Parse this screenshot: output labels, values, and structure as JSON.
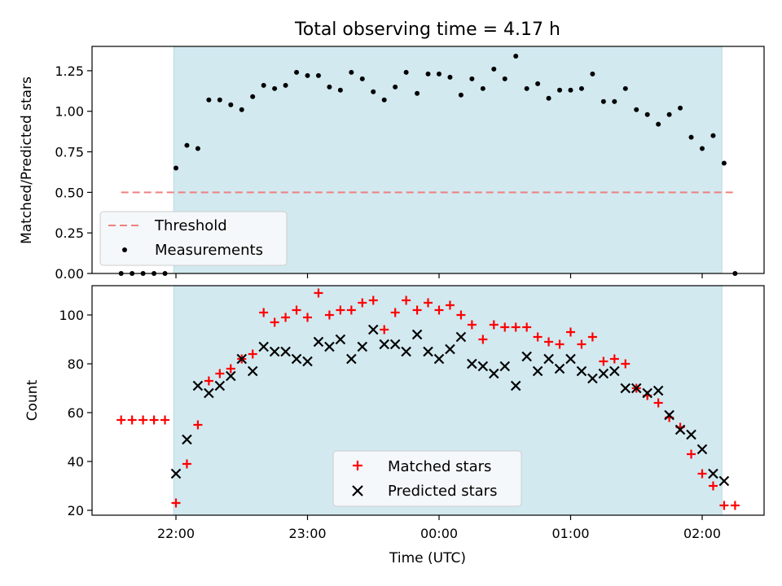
{
  "chart_data": [
    {
      "type": "scatter",
      "title": "Total observing time = 4.17 h",
      "ylabel": "Matched/Predicted stars",
      "xlabel": "",
      "ylim": [
        0,
        1.4
      ],
      "yticks": [
        "0.00",
        "0.25",
        "0.50",
        "0.75",
        "1.00",
        "1.25"
      ],
      "observing_window": {
        "start": "21:59",
        "end": "02:09"
      },
      "threshold": {
        "value": 0.5,
        "x_start": "21:35",
        "x_end": "02:15"
      },
      "legend": [
        "Threshold",
        "Measurements"
      ],
      "legend_position": "lower-left",
      "colors": {
        "band": "#d2e9f0",
        "threshold": "#f08080",
        "points": "#000000"
      },
      "series": [
        {
          "name": "Measurements",
          "x": [
            "21:35",
            "21:40",
            "21:45",
            "21:50",
            "21:55",
            "22:00",
            "22:05",
            "22:10",
            "22:15",
            "22:20",
            "22:25",
            "22:30",
            "22:35",
            "22:40",
            "22:45",
            "22:50",
            "22:55",
            "23:00",
            "23:05",
            "23:10",
            "23:15",
            "23:20",
            "23:25",
            "23:30",
            "23:35",
            "23:40",
            "23:45",
            "23:50",
            "23:55",
            "00:00",
            "00:05",
            "00:10",
            "00:15",
            "00:20",
            "00:25",
            "00:30",
            "00:35",
            "00:40",
            "00:45",
            "00:50",
            "00:55",
            "01:00",
            "01:05",
            "01:10",
            "01:15",
            "01:20",
            "01:25",
            "01:30",
            "01:35",
            "01:40",
            "01:45",
            "01:50",
            "01:55",
            "02:00",
            "02:05",
            "02:10",
            "02:15"
          ],
          "y": [
            0,
            0,
            0,
            0,
            0,
            0.65,
            0.79,
            0.77,
            1.07,
            1.07,
            1.04,
            1.01,
            1.09,
            1.16,
            1.14,
            1.16,
            1.24,
            1.22,
            1.22,
            1.15,
            1.13,
            1.24,
            1.2,
            1.12,
            1.07,
            1.15,
            1.24,
            1.11,
            1.23,
            1.23,
            1.21,
            1.1,
            1.2,
            1.14,
            1.26,
            1.2,
            1.34,
            1.14,
            1.17,
            1.08,
            1.13,
            1.13,
            1.14,
            1.23,
            1.06,
            1.06,
            1.14,
            1.01,
            0.98,
            0.92,
            0.98,
            1.02,
            0.84,
            0.77,
            0.85,
            0.68,
            0
          ]
        }
      ]
    },
    {
      "type": "scatter",
      "xlabel": "Time (UTC)",
      "ylabel": "Count",
      "ylim": [
        18,
        112
      ],
      "yticks": [
        "20",
        "40",
        "60",
        "80",
        "100"
      ],
      "xticks": [
        "22:00",
        "23:00",
        "00:00",
        "01:00",
        "02:00"
      ],
      "observing_window": {
        "start": "21:59",
        "end": "02:09"
      },
      "legend": [
        "Matched stars",
        "Predicted stars"
      ],
      "legend_position": "lower-center",
      "colors": {
        "band": "#d2e9f0",
        "matched": "#ff0000",
        "predicted": "#000000"
      },
      "series": [
        {
          "name": "Matched stars",
          "x": [
            "21:35",
            "21:40",
            "21:45",
            "21:50",
            "21:55",
            "22:00",
            "22:05",
            "22:10",
            "22:15",
            "22:20",
            "22:25",
            "22:30",
            "22:35",
            "22:40",
            "22:45",
            "22:50",
            "22:55",
            "23:00",
            "23:05",
            "23:10",
            "23:15",
            "23:20",
            "23:25",
            "23:30",
            "23:35",
            "23:40",
            "23:45",
            "23:50",
            "23:55",
            "00:00",
            "00:05",
            "00:10",
            "00:15",
            "00:20",
            "00:25",
            "00:30",
            "00:35",
            "00:40",
            "00:45",
            "00:50",
            "00:55",
            "01:00",
            "01:05",
            "01:10",
            "01:15",
            "01:20",
            "01:25",
            "01:30",
            "01:35",
            "01:40",
            "01:45",
            "01:50",
            "01:55",
            "02:00",
            "02:05",
            "02:10",
            "02:15"
          ],
          "y": [
            57,
            57,
            57,
            57,
            57,
            23,
            39,
            55,
            73,
            76,
            78,
            82,
            84,
            101,
            97,
            99,
            102,
            99,
            109,
            100,
            102,
            102,
            105,
            106,
            94,
            101,
            106,
            102,
            105,
            102,
            104,
            100,
            96,
            90,
            96,
            95,
            95,
            95,
            91,
            89,
            88,
            93,
            88,
            91,
            81,
            82,
            80,
            70,
            67,
            64,
            58,
            54,
            43,
            35,
            30,
            22,
            22
          ]
        },
        {
          "name": "Predicted stars",
          "x": [
            "22:00",
            "22:05",
            "22:10",
            "22:15",
            "22:20",
            "22:25",
            "22:30",
            "22:35",
            "22:40",
            "22:45",
            "22:50",
            "22:55",
            "23:00",
            "23:05",
            "23:10",
            "23:15",
            "23:20",
            "23:25",
            "23:30",
            "23:35",
            "23:40",
            "23:45",
            "23:50",
            "23:55",
            "00:00",
            "00:05",
            "00:10",
            "00:15",
            "00:20",
            "00:25",
            "00:30",
            "00:35",
            "00:40",
            "00:45",
            "00:50",
            "00:55",
            "01:00",
            "01:05",
            "01:10",
            "01:15",
            "01:20",
            "01:25",
            "01:30",
            "01:35",
            "01:40",
            "01:45",
            "01:50",
            "01:55",
            "02:00",
            "02:05",
            "02:10"
          ],
          "y": [
            35,
            49,
            71,
            68,
            71,
            75,
            82,
            77,
            87,
            85,
            85,
            82,
            81,
            89,
            87,
            90,
            82,
            87,
            94,
            88,
            88,
            85,
            92,
            85,
            82,
            86,
            91,
            80,
            79,
            76,
            79,
            71,
            83,
            77,
            82,
            78,
            82,
            77,
            74,
            76,
            77,
            70,
            70,
            68,
            69,
            59,
            53,
            51,
            45,
            35,
            32
          ]
        }
      ]
    }
  ]
}
